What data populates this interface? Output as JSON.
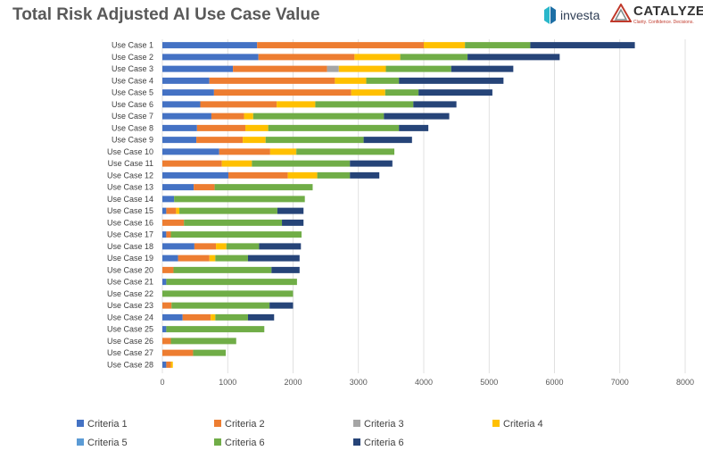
{
  "page": {
    "logos": {
      "investa": "investa",
      "catalyze": "CATALYZE",
      "catalyze_tagline": "Clarity. Confidence. Decisions."
    }
  },
  "chart_data": {
    "type": "bar",
    "orientation": "horizontal",
    "stacked": true,
    "title": "Total Risk Adjusted AI Use Case Value",
    "xlabel": "",
    "ylabel": "",
    "xlim": [
      0,
      8000
    ],
    "xticks": [
      0,
      1000,
      2000,
      3000,
      4000,
      5000,
      6000,
      7000,
      8000
    ],
    "grid": "vertical",
    "legend_position": "bottom",
    "categories": [
      "Use Case 1",
      "Use Case 2",
      "Use Case 3",
      "Use Case 4",
      "Use Case 5",
      "Use Case 6",
      "Use Case 7",
      "Use Case 8",
      "Use Case 9",
      "Use Case 10",
      "Use Case 11",
      "Use Case 12",
      "Use Case 13",
      "Use Case 14",
      "Use Case 15",
      "Use Case 16",
      "Use Case 17",
      "Use Case 18",
      "Use Case 19",
      "Use Case 20",
      "Use Case 21",
      "Use Case 22",
      "Use Case 23",
      "Use Case 24",
      "Use Case 25",
      "Use Case 26",
      "Use Case 27",
      "Use Case 28"
    ],
    "series": [
      {
        "name": "Criteria 1",
        "color": "#4472c4",
        "values": [
          1450,
          1470,
          1080,
          720,
          790,
          580,
          750,
          530,
          520,
          870,
          0,
          1010,
          480,
          180,
          60,
          0,
          60,
          490,
          240,
          0,
          60,
          0,
          0,
          310,
          60,
          0,
          0,
          60
        ]
      },
      {
        "name": "Criteria 2",
        "color": "#ed7d31",
        "values": [
          2550,
          1470,
          1440,
          1920,
          2100,
          1170,
          500,
          740,
          710,
          780,
          910,
          910,
          320,
          0,
          150,
          330,
          70,
          330,
          480,
          170,
          0,
          0,
          140,
          430,
          0,
          130,
          470,
          70
        ]
      },
      {
        "name": "Criteria 3",
        "color": "#a5a5a5",
        "values": [
          0,
          0,
          180,
          0,
          0,
          0,
          0,
          0,
          0,
          0,
          0,
          0,
          0,
          0,
          0,
          0,
          0,
          0,
          0,
          0,
          0,
          0,
          0,
          0,
          0,
          0,
          0,
          0
        ]
      },
      {
        "name": "Criteria 4",
        "color": "#ffc000",
        "values": [
          630,
          700,
          720,
          480,
          520,
          590,
          140,
          350,
          350,
          400,
          460,
          450,
          0,
          0,
          50,
          0,
          0,
          160,
          90,
          0,
          0,
          0,
          0,
          70,
          0,
          0,
          0,
          30
        ]
      },
      {
        "name": "Criteria 5",
        "color": "#5b9bd5",
        "values": [
          0,
          0,
          0,
          0,
          0,
          0,
          0,
          0,
          0,
          0,
          0,
          0,
          0,
          0,
          0,
          0,
          0,
          0,
          0,
          0,
          0,
          0,
          0,
          0,
          0,
          0,
          0,
          0
        ]
      },
      {
        "name": "Criteria 6",
        "color": "#70ad47",
        "values": [
          1000,
          1030,
          1000,
          500,
          510,
          1500,
          2000,
          2000,
          1500,
          1500,
          1500,
          500,
          1500,
          2000,
          1500,
          1500,
          2000,
          500,
          500,
          1500,
          2000,
          2000,
          1500,
          500,
          1500,
          1000,
          500,
          0
        ]
      },
      {
        "name": "Criteria 6",
        "color": "#264478",
        "values": [
          1600,
          1410,
          950,
          1600,
          1130,
          660,
          1000,
          450,
          740,
          0,
          650,
          450,
          0,
          0,
          400,
          330,
          0,
          640,
          790,
          430,
          0,
          0,
          360,
          400,
          0,
          0,
          0,
          0
        ]
      }
    ]
  }
}
